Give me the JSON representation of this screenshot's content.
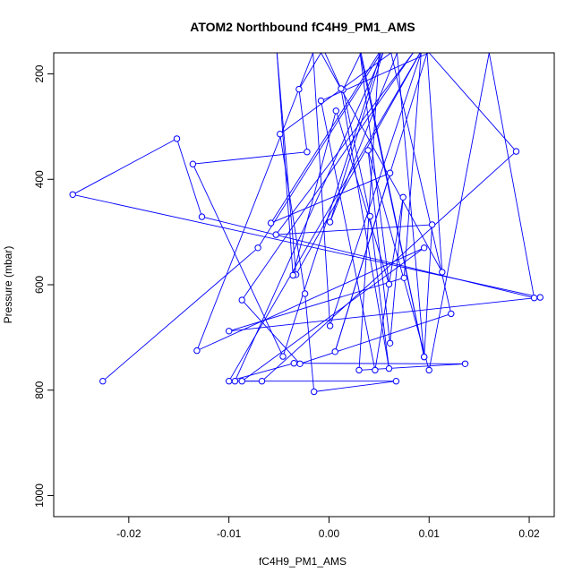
{
  "chart_data": {
    "type": "line",
    "title": "ATOM2 Northbound fC4H9_PM1_AMS",
    "xlabel": "fC4H9_PM1_AMS",
    "ylabel": "Pressure (mbar)",
    "xlim": [
      -0.0275,
      0.0225
    ],
    "ylim": [
      1040,
      160
    ],
    "y_reversed": true,
    "grid": false,
    "legend": "none",
    "x_ticks": [
      -0.02,
      -0.01,
      0.0,
      0.01,
      0.02
    ],
    "x_tick_labels": [
      "-0.02",
      "-0.01",
      "0.00",
      "0.01",
      "0.02"
    ],
    "y_ticks": [
      200,
      400,
      600,
      800,
      1000
    ],
    "y_tick_labels": [
      "200",
      "400",
      "600",
      "800",
      "1000"
    ],
    "colors": {
      "series": "#0000ff",
      "axis": "#000000"
    },
    "series": [
      {
        "points": [
          [
            -0.0226,
            783
          ],
          [
            -0.0071,
            530
          ],
          [
            0.0052,
            160
          ],
          [
            -0.0046,
            736
          ],
          [
            -0.0136,
            371
          ],
          [
            -0.0022,
            348
          ],
          [
            -0.003,
            229
          ],
          [
            -0.0008,
            160
          ],
          [
            0.0113,
            576
          ],
          [
            0.0098,
            160
          ],
          [
            0.0006,
            727
          ],
          [
            0.0061,
            388
          ],
          [
            -0.0058,
            483
          ],
          [
            0.005,
            160
          ],
          [
            0.003,
            762
          ],
          [
            0.0136,
            750
          ],
          [
            -0.0035,
            749
          ],
          [
            -0.01,
            783
          ],
          [
            0.0091,
            160
          ],
          [
            -0.0033,
            581
          ],
          [
            -0.0052,
            160
          ],
          [
            -0.0036,
            582
          ],
          [
            0.0007,
            270
          ],
          [
            0.006,
            599
          ],
          [
            0.0031,
            160
          ],
          [
            0.0095,
            737
          ],
          [
            0.0103,
            486
          ],
          [
            -0.0053,
            505
          ],
          [
            0.0084,
            160
          ],
          [
            -0.0087,
            629
          ],
          [
            -0.0029,
            750
          ],
          [
            0.0122,
            655
          ],
          [
            0.0062,
            160
          ],
          [
            -0.0049,
            314
          ],
          [
            -0.0024,
            617
          ],
          [
            -0.0015,
            803
          ],
          [
            0.0067,
            783
          ],
          [
            -0.0087,
            783
          ],
          [
            0.0095,
            530
          ],
          [
            -0.0132,
            725
          ],
          [
            -0.0016,
            160
          ],
          [
            0.0001,
            678
          ],
          [
            0.0092,
            160
          ],
          [
            0.0075,
            587
          ],
          [
            -0.01,
            688
          ],
          [
            0.0211,
            624
          ],
          [
            -0.0256,
            429
          ],
          [
            -0.0152,
            323
          ],
          [
            -0.0127,
            471
          ],
          [
            0.0205,
            625
          ],
          [
            0.016,
            160
          ],
          [
            0.01,
            762
          ],
          [
            0.0039,
            345
          ],
          [
            0.0061,
            711
          ],
          [
            0.0074,
            434
          ],
          [
            0.0046,
            762
          ],
          [
            -0.0008,
            251
          ],
          [
            0.01,
            160
          ],
          [
            0.0187,
            347
          ],
          [
            -0.0067,
            783
          ],
          [
            -0.0094,
            783
          ],
          [
            0.0054,
            160
          ],
          [
            0.0001,
            481
          ],
          [
            0.0068,
            160
          ],
          [
            0.0095,
            737
          ],
          [
            0.0032,
            160
          ],
          [
            0.0014,
            230
          ],
          [
            0.0041,
            470
          ],
          [
            0.006,
            759
          ],
          [
            0.0012,
            228
          ],
          [
            -0.0004,
            160
          ]
        ]
      }
    ]
  }
}
